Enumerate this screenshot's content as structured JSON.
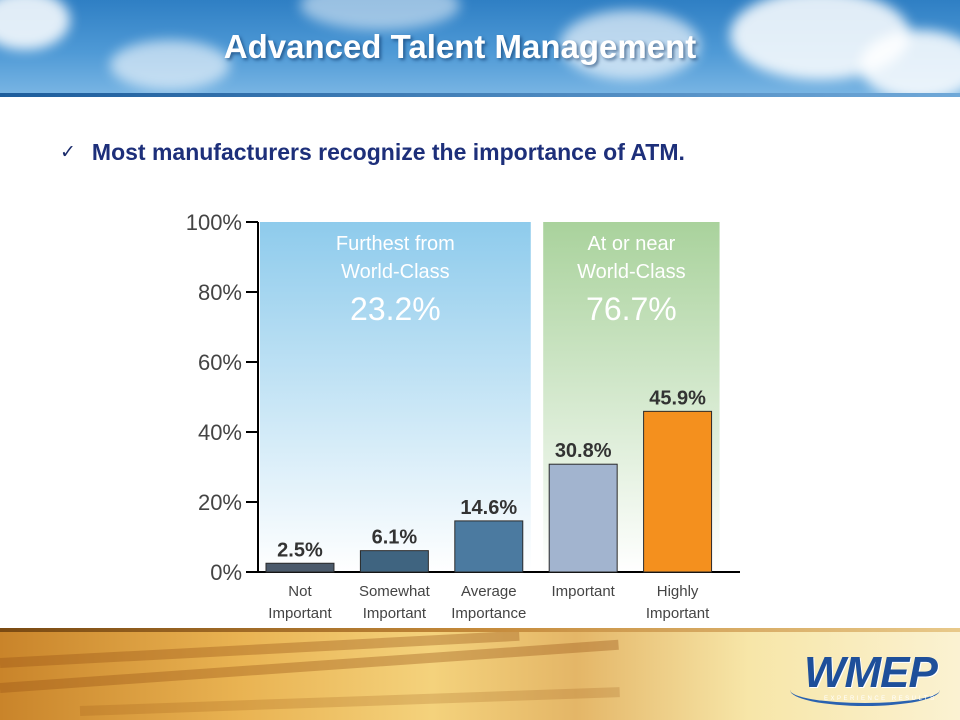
{
  "slide": {
    "title": "Advanced Talent Management",
    "bullet": "Most manufacturers recognize the importance of ATM."
  },
  "colors": {
    "title": "#ffffff",
    "bullet_text": "#1d2f7a",
    "panel_left": "#8ecbec",
    "panel_right": "#a9d29c",
    "accent_orange": "#f4901e"
  },
  "icons": {
    "bullet": "check-icon"
  },
  "logo": {
    "name": "WMEP"
  },
  "chart_data": {
    "type": "bar",
    "categories": [
      [
        "Not",
        "Important"
      ],
      [
        "Somewhat",
        "Important"
      ],
      [
        "Average",
        "Importance"
      ],
      [
        "Important"
      ],
      [
        "Highly",
        "Important"
      ]
    ],
    "values": [
      2.5,
      6.1,
      14.6,
      30.8,
      45.9
    ],
    "value_labels": [
      "2.5%",
      "6.1%",
      "14.6%",
      "30.8%",
      "45.9%"
    ],
    "bar_colors": [
      "#4b5a6b",
      "#3f6480",
      "#4b7aa0",
      "#a2b4cf",
      "#f4901e"
    ],
    "yticks": [
      "0%",
      "20%",
      "40%",
      "60%",
      "80%",
      "100%"
    ],
    "ylim": [
      0,
      100
    ],
    "groups": [
      {
        "label_lines": [
          "Furthest from",
          "World-Class"
        ],
        "value": "23.2%",
        "range": [
          0,
          2
        ],
        "color": "#8ecbec"
      },
      {
        "label_lines": [
          "At or near",
          "World-Class"
        ],
        "value": "76.7%",
        "range": [
          3,
          4
        ],
        "color": "#a9d29c"
      }
    ]
  }
}
